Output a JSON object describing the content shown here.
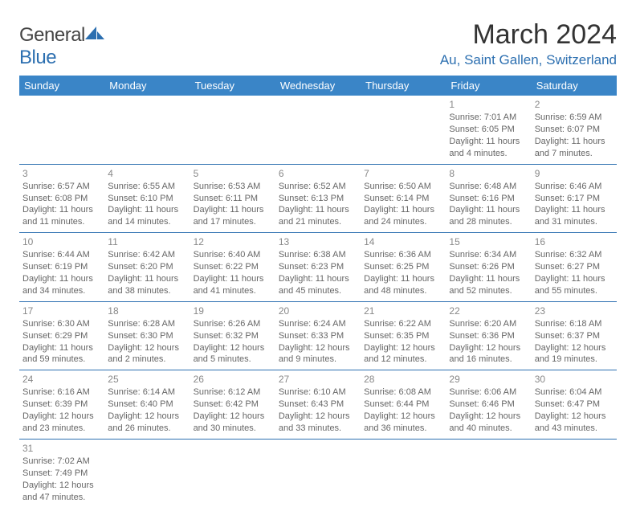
{
  "logo": {
    "textA": "General",
    "textB": "Blue"
  },
  "title": "March 2024",
  "location": "Au, Saint Gallen, Switzerland",
  "colors": {
    "headerBg": "#3a85c7",
    "accent": "#2c6fb0",
    "text": "#666"
  },
  "weekdays": [
    "Sunday",
    "Monday",
    "Tuesday",
    "Wednesday",
    "Thursday",
    "Friday",
    "Saturday"
  ],
  "weeks": [
    [
      null,
      null,
      null,
      null,
      null,
      {
        "n": "1",
        "sr": "Sunrise: 7:01 AM",
        "ss": "Sunset: 6:05 PM",
        "d1": "Daylight: 11 hours",
        "d2": "and 4 minutes."
      },
      {
        "n": "2",
        "sr": "Sunrise: 6:59 AM",
        "ss": "Sunset: 6:07 PM",
        "d1": "Daylight: 11 hours",
        "d2": "and 7 minutes."
      }
    ],
    [
      {
        "n": "3",
        "sr": "Sunrise: 6:57 AM",
        "ss": "Sunset: 6:08 PM",
        "d1": "Daylight: 11 hours",
        "d2": "and 11 minutes."
      },
      {
        "n": "4",
        "sr": "Sunrise: 6:55 AM",
        "ss": "Sunset: 6:10 PM",
        "d1": "Daylight: 11 hours",
        "d2": "and 14 minutes."
      },
      {
        "n": "5",
        "sr": "Sunrise: 6:53 AM",
        "ss": "Sunset: 6:11 PM",
        "d1": "Daylight: 11 hours",
        "d2": "and 17 minutes."
      },
      {
        "n": "6",
        "sr": "Sunrise: 6:52 AM",
        "ss": "Sunset: 6:13 PM",
        "d1": "Daylight: 11 hours",
        "d2": "and 21 minutes."
      },
      {
        "n": "7",
        "sr": "Sunrise: 6:50 AM",
        "ss": "Sunset: 6:14 PM",
        "d1": "Daylight: 11 hours",
        "d2": "and 24 minutes."
      },
      {
        "n": "8",
        "sr": "Sunrise: 6:48 AM",
        "ss": "Sunset: 6:16 PM",
        "d1": "Daylight: 11 hours",
        "d2": "and 28 minutes."
      },
      {
        "n": "9",
        "sr": "Sunrise: 6:46 AM",
        "ss": "Sunset: 6:17 PM",
        "d1": "Daylight: 11 hours",
        "d2": "and 31 minutes."
      }
    ],
    [
      {
        "n": "10",
        "sr": "Sunrise: 6:44 AM",
        "ss": "Sunset: 6:19 PM",
        "d1": "Daylight: 11 hours",
        "d2": "and 34 minutes."
      },
      {
        "n": "11",
        "sr": "Sunrise: 6:42 AM",
        "ss": "Sunset: 6:20 PM",
        "d1": "Daylight: 11 hours",
        "d2": "and 38 minutes."
      },
      {
        "n": "12",
        "sr": "Sunrise: 6:40 AM",
        "ss": "Sunset: 6:22 PM",
        "d1": "Daylight: 11 hours",
        "d2": "and 41 minutes."
      },
      {
        "n": "13",
        "sr": "Sunrise: 6:38 AM",
        "ss": "Sunset: 6:23 PM",
        "d1": "Daylight: 11 hours",
        "d2": "and 45 minutes."
      },
      {
        "n": "14",
        "sr": "Sunrise: 6:36 AM",
        "ss": "Sunset: 6:25 PM",
        "d1": "Daylight: 11 hours",
        "d2": "and 48 minutes."
      },
      {
        "n": "15",
        "sr": "Sunrise: 6:34 AM",
        "ss": "Sunset: 6:26 PM",
        "d1": "Daylight: 11 hours",
        "d2": "and 52 minutes."
      },
      {
        "n": "16",
        "sr": "Sunrise: 6:32 AM",
        "ss": "Sunset: 6:27 PM",
        "d1": "Daylight: 11 hours",
        "d2": "and 55 minutes."
      }
    ],
    [
      {
        "n": "17",
        "sr": "Sunrise: 6:30 AM",
        "ss": "Sunset: 6:29 PM",
        "d1": "Daylight: 11 hours",
        "d2": "and 59 minutes."
      },
      {
        "n": "18",
        "sr": "Sunrise: 6:28 AM",
        "ss": "Sunset: 6:30 PM",
        "d1": "Daylight: 12 hours",
        "d2": "and 2 minutes."
      },
      {
        "n": "19",
        "sr": "Sunrise: 6:26 AM",
        "ss": "Sunset: 6:32 PM",
        "d1": "Daylight: 12 hours",
        "d2": "and 5 minutes."
      },
      {
        "n": "20",
        "sr": "Sunrise: 6:24 AM",
        "ss": "Sunset: 6:33 PM",
        "d1": "Daylight: 12 hours",
        "d2": "and 9 minutes."
      },
      {
        "n": "21",
        "sr": "Sunrise: 6:22 AM",
        "ss": "Sunset: 6:35 PM",
        "d1": "Daylight: 12 hours",
        "d2": "and 12 minutes."
      },
      {
        "n": "22",
        "sr": "Sunrise: 6:20 AM",
        "ss": "Sunset: 6:36 PM",
        "d1": "Daylight: 12 hours",
        "d2": "and 16 minutes."
      },
      {
        "n": "23",
        "sr": "Sunrise: 6:18 AM",
        "ss": "Sunset: 6:37 PM",
        "d1": "Daylight: 12 hours",
        "d2": "and 19 minutes."
      }
    ],
    [
      {
        "n": "24",
        "sr": "Sunrise: 6:16 AM",
        "ss": "Sunset: 6:39 PM",
        "d1": "Daylight: 12 hours",
        "d2": "and 23 minutes."
      },
      {
        "n": "25",
        "sr": "Sunrise: 6:14 AM",
        "ss": "Sunset: 6:40 PM",
        "d1": "Daylight: 12 hours",
        "d2": "and 26 minutes."
      },
      {
        "n": "26",
        "sr": "Sunrise: 6:12 AM",
        "ss": "Sunset: 6:42 PM",
        "d1": "Daylight: 12 hours",
        "d2": "and 30 minutes."
      },
      {
        "n": "27",
        "sr": "Sunrise: 6:10 AM",
        "ss": "Sunset: 6:43 PM",
        "d1": "Daylight: 12 hours",
        "d2": "and 33 minutes."
      },
      {
        "n": "28",
        "sr": "Sunrise: 6:08 AM",
        "ss": "Sunset: 6:44 PM",
        "d1": "Daylight: 12 hours",
        "d2": "and 36 minutes."
      },
      {
        "n": "29",
        "sr": "Sunrise: 6:06 AM",
        "ss": "Sunset: 6:46 PM",
        "d1": "Daylight: 12 hours",
        "d2": "and 40 minutes."
      },
      {
        "n": "30",
        "sr": "Sunrise: 6:04 AM",
        "ss": "Sunset: 6:47 PM",
        "d1": "Daylight: 12 hours",
        "d2": "and 43 minutes."
      }
    ],
    [
      {
        "n": "31",
        "sr": "Sunrise: 7:02 AM",
        "ss": "Sunset: 7:49 PM",
        "d1": "Daylight: 12 hours",
        "d2": "and 47 minutes."
      },
      null,
      null,
      null,
      null,
      null,
      null
    ]
  ]
}
